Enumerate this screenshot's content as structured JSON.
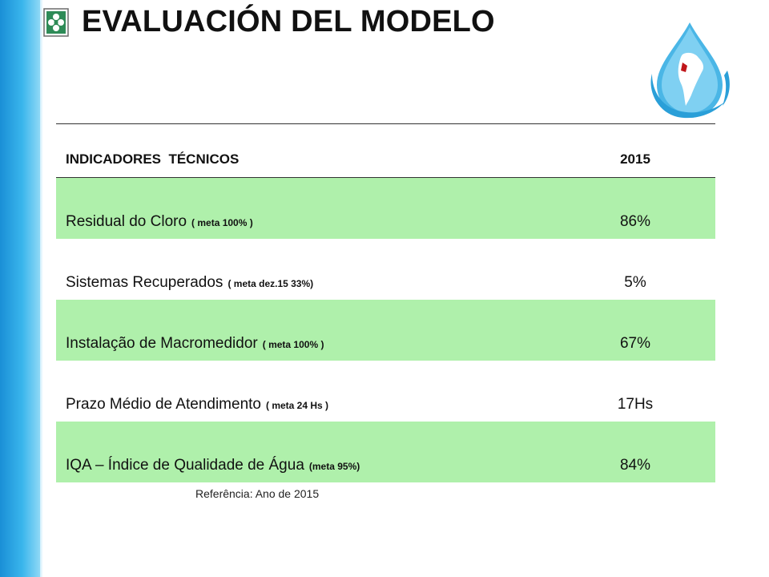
{
  "title": "EVALUACIÓN DEL MODELO",
  "table": {
    "headers": [
      "INDICADORES  TÉCNICOS",
      "2015"
    ],
    "rows": [
      {
        "label": "Residual do Cloro",
        "meta": "( meta 100% )",
        "value": "86%",
        "shaded": true
      },
      {
        "label": "Sistemas Recuperados",
        "meta": "( meta dez.15 33%)",
        "value": "5%",
        "shaded": false
      },
      {
        "label": "Instalação de Macromedidor",
        "meta": "( meta 100% )",
        "value": "67%",
        "shaded": true
      },
      {
        "label": "Prazo Médio de Atendimento",
        "meta": "( meta 24 Hs )",
        "value": "17Hs",
        "shaded": false
      },
      {
        "label": "IQA – Índice de Qualidade de Água",
        "meta": "(meta 95%)",
        "value": "84%",
        "shaded": true
      }
    ]
  },
  "reference": "Referência: Ano de 2015",
  "colors": {
    "row_highlight": "#aff0ab",
    "accent_blue": "#1a8fd6",
    "corner_logo_green": "#2e8b57",
    "map_red": "#c0161b"
  },
  "icons": {
    "corner_logo": "green-clover-emblem-icon",
    "drop_logo": "water-drop-globe-logo"
  }
}
